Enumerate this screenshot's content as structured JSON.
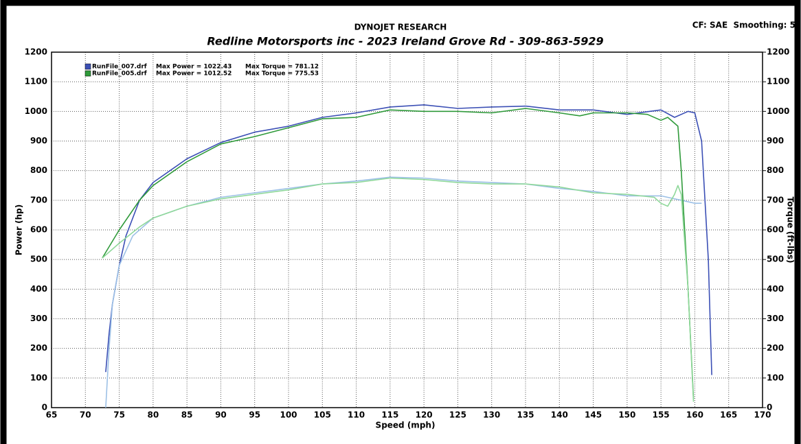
{
  "chart_data": {
    "type": "line",
    "title": "DYNOJET RESEARCH",
    "subtitle": "Redline Motorsports inc - 2023 Ireland Grove Rd - 309-863-5929",
    "corner_note": "CF: SAE  Smoothing: 5",
    "xlabel": "Speed (mph)",
    "ylabel": "Power (hp)",
    "y2label": "Torque (ft-lbs)",
    "xlim": [
      65,
      170
    ],
    "xticks": [
      65,
      70,
      75,
      80,
      85,
      90,
      95,
      100,
      105,
      110,
      115,
      120,
      125,
      130,
      135,
      140,
      145,
      150,
      155,
      160,
      165,
      170
    ],
    "ylim": [
      0,
      1200
    ],
    "yticks": [
      0,
      100,
      200,
      300,
      400,
      500,
      600,
      700,
      800,
      900,
      1000,
      1100,
      1200
    ],
    "y2lim": [
      0,
      1200
    ],
    "y2ticks": [
      0,
      100,
      200,
      300,
      400,
      500,
      600,
      700,
      800,
      900,
      1000,
      1100,
      1200
    ],
    "grid": true,
    "legend": [
      {
        "color": "#3b4fb5",
        "file": "RunFile_007.drf",
        "power": "Max Power = 1022.43",
        "torque": "Max Torque = 781.12"
      },
      {
        "color": "#2f9a3a",
        "file": "RunFile_005.drf",
        "power": "Max Power = 1012.52",
        "torque": "Max Torque = 775.53"
      }
    ],
    "series": [
      {
        "color": "#3b4fb5",
        "axis": "y",
        "x": [
          73,
          73.5,
          74,
          75,
          76,
          78,
          80,
          85,
          90,
          95,
          100,
          105,
          110,
          115,
          120,
          125,
          130,
          135,
          140,
          145,
          150,
          155,
          157,
          159,
          160,
          161,
          162,
          162.5
        ],
        "values": [
          120,
          250,
          350,
          480,
          580,
          700,
          760,
          840,
          895,
          930,
          950,
          980,
          995,
          1015,
          1022,
          1010,
          1015,
          1018,
          1005,
          1005,
          990,
          1005,
          980,
          1000,
          995,
          900,
          500,
          110
        ]
      },
      {
        "color": "#9cc0e6",
        "axis": "y2",
        "x": [
          73,
          73.5,
          74,
          75,
          77,
          80,
          85,
          90,
          95,
          100,
          105,
          110,
          115,
          120,
          125,
          130,
          135,
          140,
          145,
          150,
          155,
          158,
          160,
          161
        ],
        "values": [
          0,
          200,
          350,
          480,
          580,
          640,
          680,
          710,
          725,
          740,
          755,
          765,
          778,
          775,
          765,
          760,
          755,
          740,
          730,
          715,
          715,
          700,
          690,
          690
        ]
      },
      {
        "color": "#2f9a3a",
        "axis": "y",
        "x": [
          72.5,
          75,
          78,
          80,
          85,
          90,
          95,
          100,
          105,
          110,
          115,
          120,
          125,
          130,
          135,
          140,
          143,
          145,
          150,
          153,
          155,
          156,
          157.5,
          158,
          159,
          159.8
        ],
        "values": [
          505,
          600,
          700,
          750,
          830,
          890,
          915,
          945,
          975,
          980,
          1005,
          1000,
          1000,
          995,
          1010,
          995,
          985,
          995,
          995,
          990,
          970,
          980,
          950,
          800,
          400,
          30
        ]
      },
      {
        "color": "#8fd89a",
        "axis": "y2",
        "x": [
          72.5,
          75,
          78,
          80,
          85,
          90,
          95,
          100,
          105,
          110,
          115,
          120,
          125,
          130,
          135,
          140,
          145,
          150,
          154,
          155,
          156,
          157,
          157.5,
          158,
          159,
          159.8
        ],
        "values": [
          505,
          555,
          610,
          640,
          680,
          705,
          720,
          735,
          755,
          760,
          775,
          770,
          760,
          755,
          755,
          745,
          725,
          720,
          710,
          690,
          680,
          720,
          750,
          720,
          400,
          20
        ]
      }
    ]
  }
}
